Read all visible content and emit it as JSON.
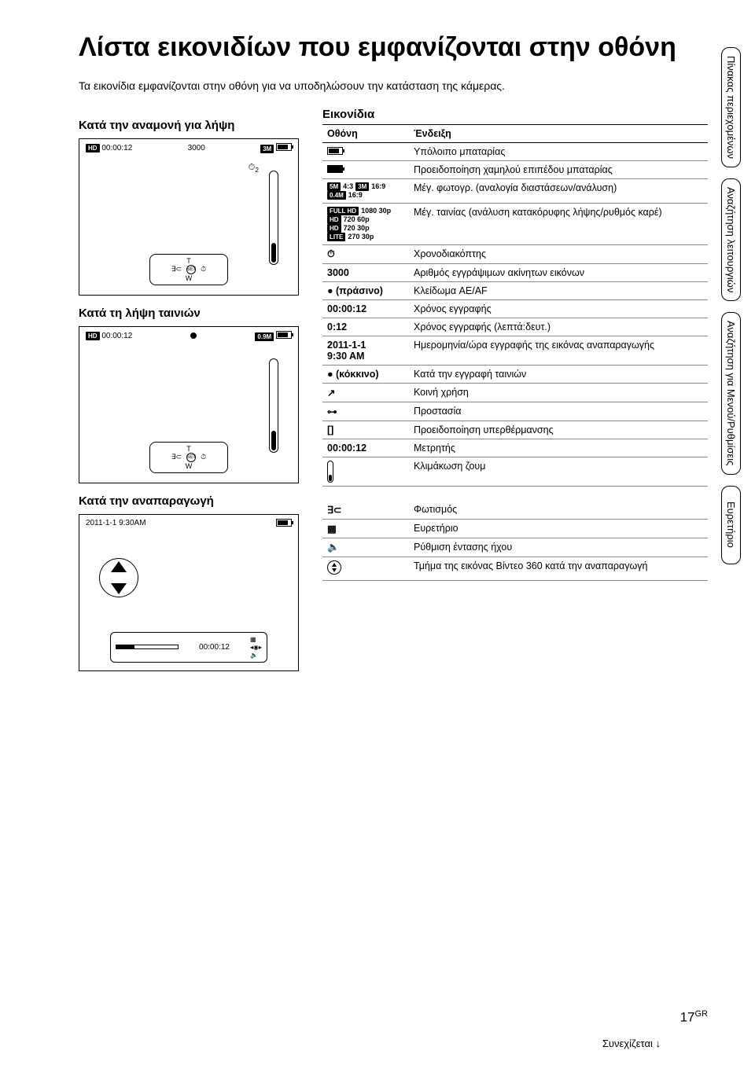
{
  "title": "Λίστα εικονιδίων που εμφανίζονται στην οθόνη",
  "intro": "Τα εικονίδια εμφανίζονται στην οθόνη για να υποδηλώσουν την κατάσταση της κάμερας.",
  "sections": {
    "standby": "Κατά την αναμονή για λήψη",
    "movie": "Κατά τη λήψη ταινιών",
    "playback": "Κατά την αναπαραγωγή"
  },
  "lcd": {
    "hd": "HD",
    "time": "00:00:12",
    "count": "3000",
    "size3m": "3M",
    "size09m": "0.9M",
    "timer2": "2",
    "T": "T",
    "W": "W",
    "set": "SET",
    "playbackDate": "2011-1-1 9:30AM",
    "playbackTime": "00:00:12"
  },
  "iconsHeader": "Εικονίδια",
  "table": {
    "col1": "Οθόνη",
    "col2": "Ένδειξη",
    "rows": [
      {
        "icon": "battery",
        "label": "",
        "desc": "Υπόλοιπο μπαταρίας"
      },
      {
        "icon": "battery-low",
        "label": "",
        "desc": "Προειδοποίηση χαμηλού επιπέδου μπαταρίας"
      },
      {
        "icon": "sizes",
        "label": "5M 4:3  3M 16:9\n0.4M 16:9",
        "desc": "Μέγ. φωτογρ. (αναλογία διαστάσεων/ανάλυση)"
      },
      {
        "icon": "movie-sizes",
        "label": "1080 30p\n720 60p\n720 30p\n270 30p",
        "desc": "Μέγ. ταινίας (ανάλυση κατακόρυφης λήψης/ρυθμός καρέ)"
      },
      {
        "icon": "timer",
        "label": "⏱",
        "desc": "Χρονοδιακόπτης"
      },
      {
        "icon": "",
        "label": "3000",
        "desc": "Αριθμός εγγράψιμων ακίνητων εικόνων"
      },
      {
        "icon": "dot-green",
        "label": "● (πράσινο)",
        "desc": "Κλείδωμα AE/AF"
      },
      {
        "icon": "",
        "label": "00:00:12",
        "desc": "Χρόνος εγγραφής"
      },
      {
        "icon": "",
        "label": "0:12",
        "desc": "Χρόνος εγγραφής (λεπτά:δευτ.)"
      },
      {
        "icon": "",
        "label": "2011-1-1\n9:30 AM",
        "desc": "Ημερομηνία/ώρα εγγραφής της εικόνας αναπαραγωγής"
      },
      {
        "icon": "dot-red",
        "label": "● (κόκκινο)",
        "desc": "Κατά την εγγραφή ταινιών"
      },
      {
        "icon": "share",
        "label": "↗",
        "desc": "Κοινή χρήση"
      },
      {
        "icon": "lock",
        "label": "⊶",
        "desc": "Προστασία"
      },
      {
        "icon": "temp",
        "label": "[]",
        "desc": "Προειδοποίηση υπερθέρμανσης"
      },
      {
        "icon": "",
        "label": "00:00:12",
        "desc": "Μετρητής"
      },
      {
        "icon": "zoom",
        "label": "",
        "desc": "Κλιμάκωση ζουμ"
      }
    ],
    "rows2": [
      {
        "icon": "light",
        "label": "",
        "desc": "Φωτισμός"
      },
      {
        "icon": "grid",
        "label": "",
        "desc": "Ευρετήριο"
      },
      {
        "icon": "vol",
        "label": "",
        "desc": "Ρύθμιση έντασης ήχου"
      },
      {
        "icon": "video360",
        "label": "",
        "desc": "Τμήμα της εικόνας Βίντεο 360 κατά την αναπαραγωγή"
      }
    ]
  },
  "sideTabs": [
    "Πίνακας περιεχομένων",
    "Αναζήτηση λειτουργιών",
    "Αναζήτηση για Μενού/Ρυθμίσεις",
    "Ευρετήριο"
  ],
  "continued": "Συνεχίζεται ↓",
  "pageNum": "17",
  "pageLang": "GR"
}
